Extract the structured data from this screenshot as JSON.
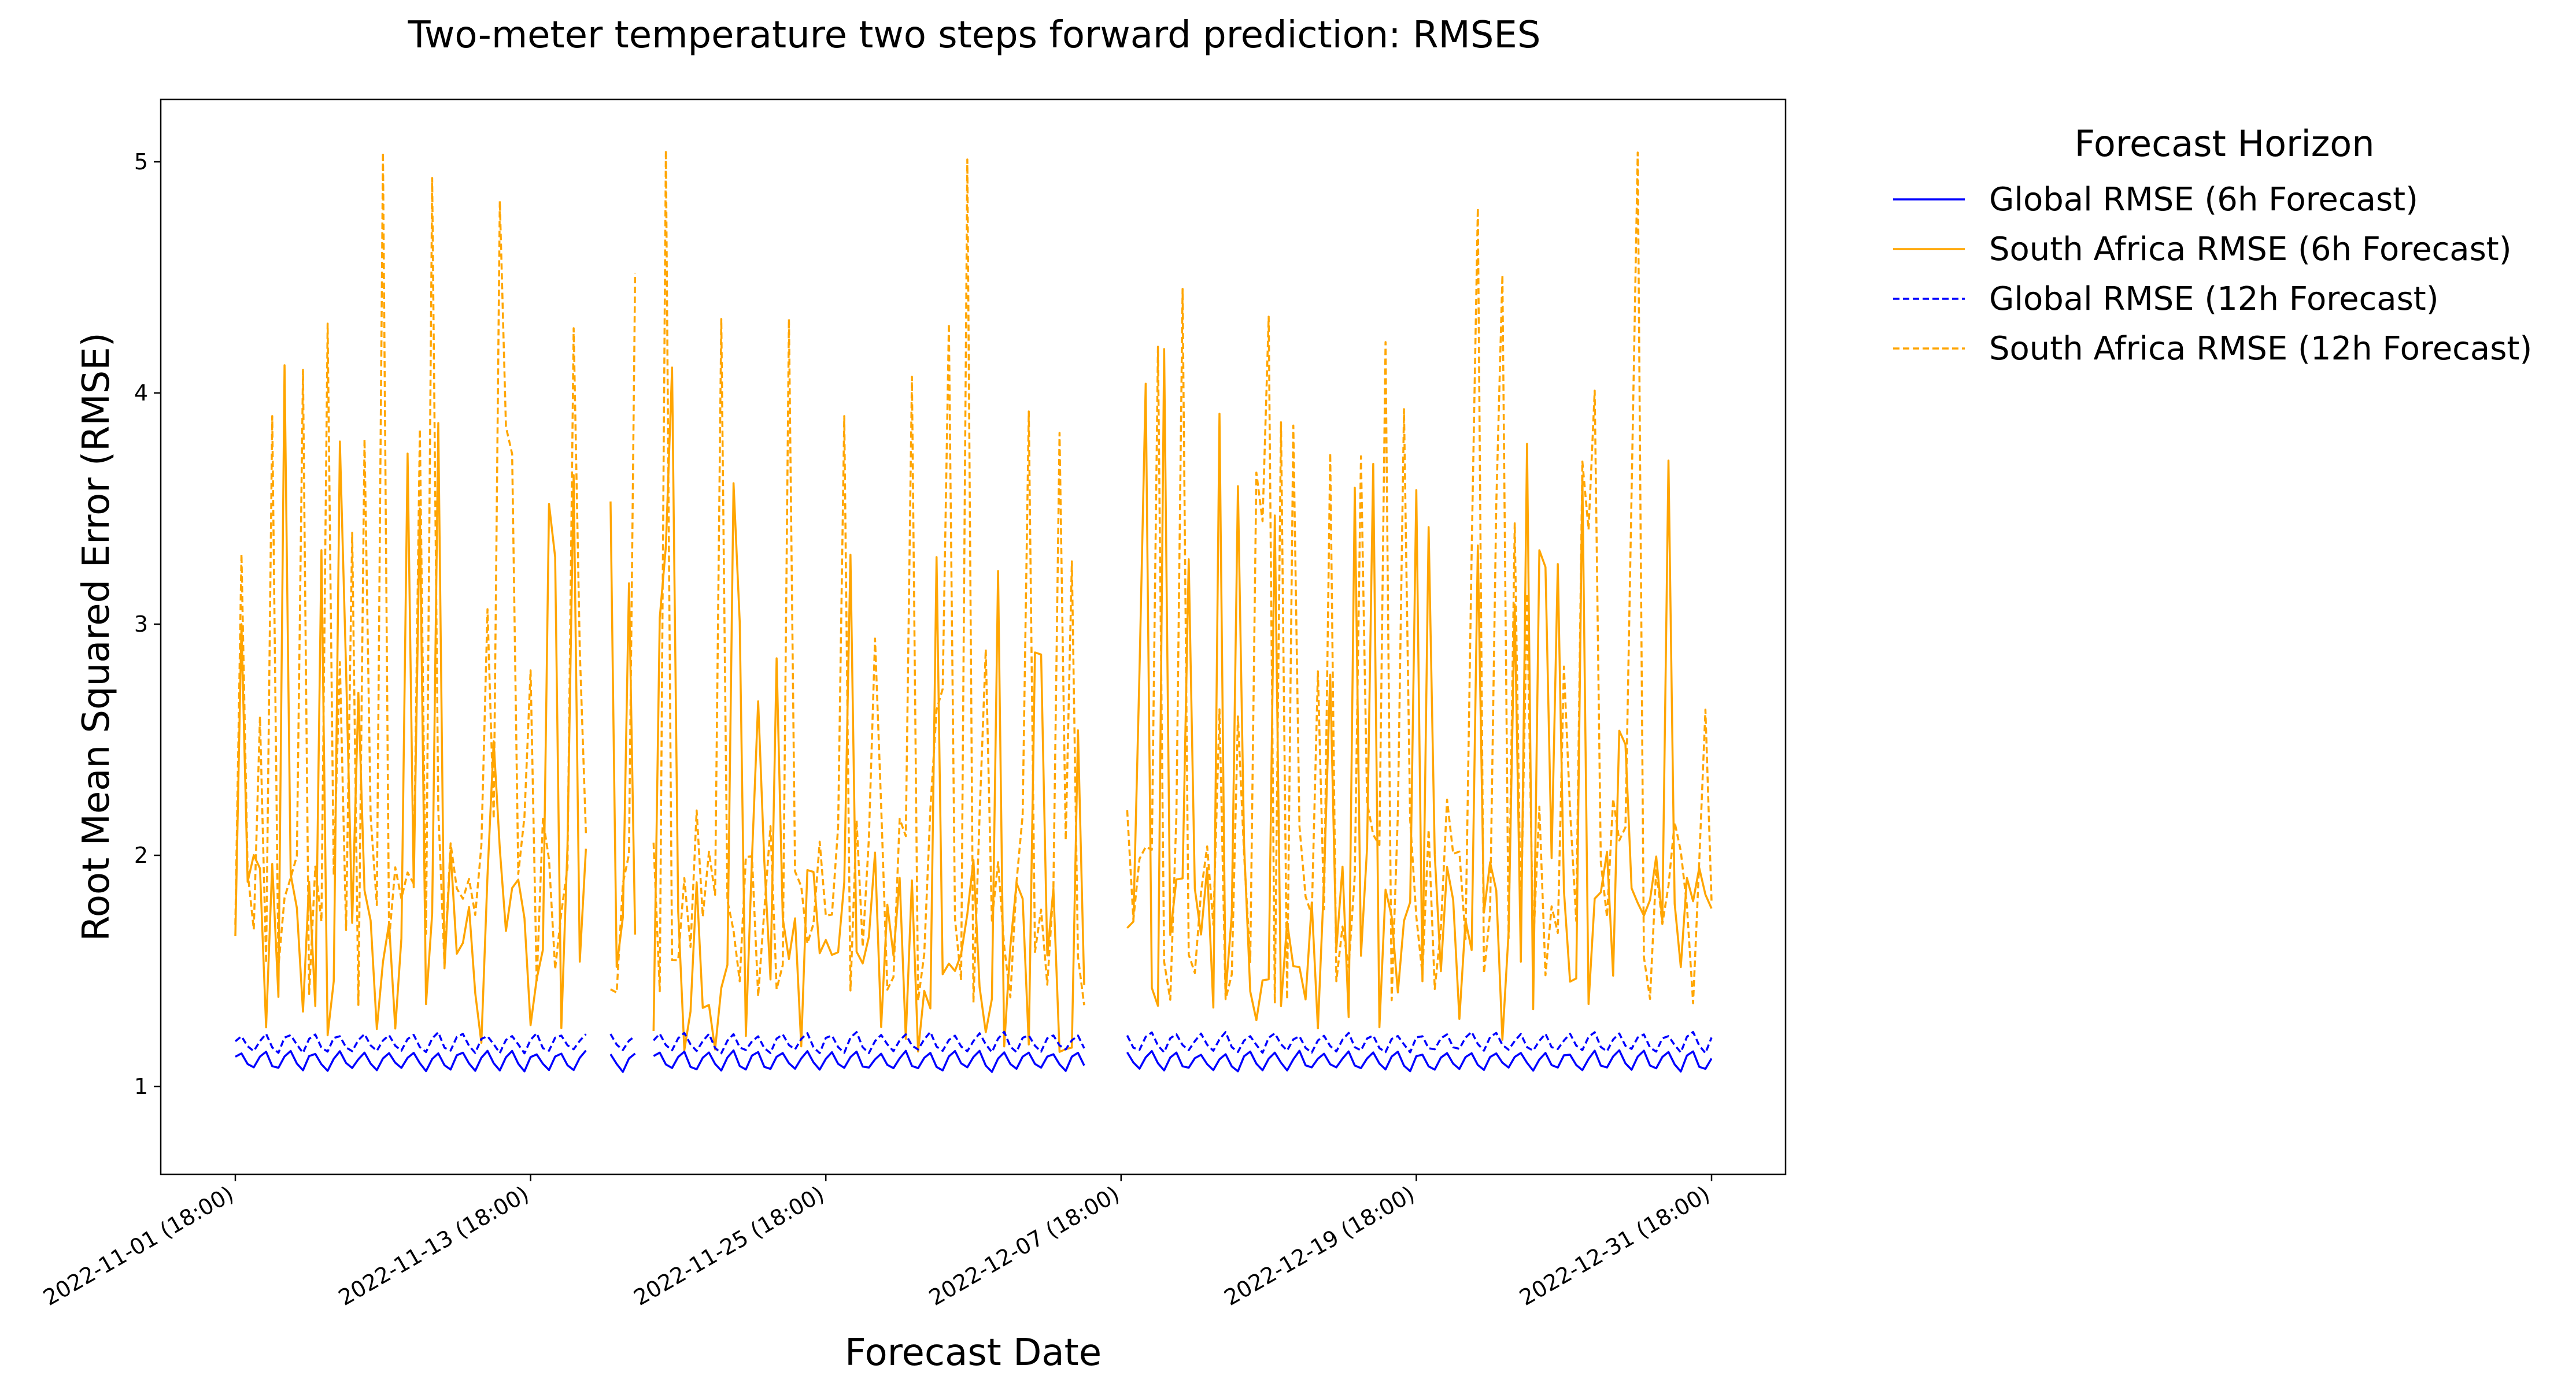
{
  "chart_data": {
    "type": "line",
    "title": "Two-meter temperature two steps forward prediction: RMSES",
    "xlabel": "Forecast Date",
    "ylabel": "Root Mean Squared Error (RMSE)",
    "x_range": [
      "2022-11-01 18:00",
      "2022-12-31 18:00"
    ],
    "x_tick_labels": [
      "2022-11-01 (18:00)",
      "2022-11-13 (18:00)",
      "2022-11-25 (18:00)",
      "2022-12-07 (18:00)",
      "2022-12-19 (18:00)",
      "2022-12-31 (18:00)"
    ],
    "y_ticks": [
      1,
      2,
      3,
      4,
      5
    ],
    "ylim": [
      0.62,
      5.27
    ],
    "grid": false,
    "legend": {
      "title": "Forecast Horizon",
      "placement": "outside top-right"
    },
    "series": [
      {
        "name": "Global RMSE (6h Forecast)",
        "color": "#0000ff",
        "dash": "solid",
        "baseline": 1.11,
        "amplitude": 0.04,
        "note_values_range": [
          1.06,
          1.19
        ]
      },
      {
        "name": "South Africa RMSE (6h Forecast)",
        "color": "#ffa500",
        "dash": "solid",
        "note_values_range": [
          0.84,
          4.11
        ]
      },
      {
        "name": "Global RMSE (12h Forecast)",
        "color": "#0000ff",
        "dash": "dashed",
        "baseline": 1.19,
        "amplitude": 0.04,
        "note_values_range": [
          1.14,
          1.29
        ]
      },
      {
        "name": "South Africa RMSE (12h Forecast)",
        "color": "#ffa500",
        "dash": "dashed",
        "note_values_range": [
          1.05,
          5.06
        ]
      }
    ],
    "peaks_12h": [
      [
        "2022-11-01 18:00",
        1.7
      ],
      [
        "2022-11-03 06:00",
        3.9
      ],
      [
        "2022-11-04 12:00",
        4.1
      ],
      [
        "2022-11-05 12:00",
        4.3
      ],
      [
        "2022-11-07 00:00",
        3.8
      ],
      [
        "2022-11-07 18:00",
        5.04
      ],
      [
        "2022-11-09 18:00",
        4.93
      ],
      [
        "2022-11-12 12:00",
        4.83
      ],
      [
        "2022-11-13 18:00",
        2.8
      ],
      [
        "2022-11-15 12:00",
        4.28
      ],
      [
        "2022-11-18 00:00",
        4.52
      ],
      [
        "2022-11-19 06:00",
        5.05
      ],
      [
        "2022-11-21 12:00",
        4.32
      ],
      [
        "2022-11-24 06:00",
        4.32
      ],
      [
        "2022-11-26 12:00",
        3.9
      ],
      [
        "2022-11-29 06:00",
        4.07
      ],
      [
        "2022-11-30 18:00",
        4.3
      ],
      [
        "2022-12-01 12:00",
        5.01
      ],
      [
        "2022-12-04 00:00",
        3.92
      ],
      [
        "2022-12-07 18:00",
        2.2
      ],
      [
        "2022-12-09 06:00",
        4.2
      ],
      [
        "2022-12-10 06:00",
        4.45
      ],
      [
        "2022-12-13 18:00",
        4.33
      ],
      [
        "2022-12-16 06:00",
        3.74
      ],
      [
        "2022-12-18 12:00",
        4.22
      ],
      [
        "2022-12-19 06:00",
        3.93
      ],
      [
        "2022-12-22 06:00",
        4.8
      ],
      [
        "2022-12-23 06:00",
        4.51
      ],
      [
        "2022-12-27 00:00",
        4.01
      ],
      [
        "2022-12-28 18:00",
        5.04
      ],
      [
        "2022-12-31 12:00",
        2.63
      ],
      [
        "2022-12-31 18:00",
        1.8
      ]
    ],
    "peaks_6h": [
      [
        "2022-11-01 18:00",
        1.65
      ],
      [
        "2022-11-02 00:00",
        3.0
      ],
      [
        "2022-11-03 18:00",
        4.12
      ],
      [
        "2022-11-05 06:00",
        3.32
      ],
      [
        "2022-11-06 00:00",
        3.79
      ],
      [
        "2022-11-09 06:00",
        3.5
      ],
      [
        "2022-11-10 00:00",
        3.87
      ],
      [
        "2022-11-14 12:00",
        3.52
      ],
      [
        "2022-11-16 18:00",
        3.63
      ],
      [
        "2022-11-19 12:00",
        4.11
      ],
      [
        "2022-11-22 06:00",
        3.01
      ],
      [
        "2022-11-26 18:00",
        3.3
      ],
      [
        "2022-11-30 06:00",
        3.29
      ],
      [
        "2022-12-02 18:00",
        3.23
      ],
      [
        "2022-12-08 18:00",
        4.04
      ],
      [
        "2022-12-09 12:00",
        4.19
      ],
      [
        "2022-12-11 18:00",
        3.91
      ],
      [
        "2022-12-14 00:00",
        3.47
      ],
      [
        "2022-12-17 06:00",
        3.59
      ],
      [
        "2022-12-19 18:00",
        3.58
      ],
      [
        "2022-12-20 06:00",
        3.42
      ],
      [
        "2022-12-22 06:00",
        3.34
      ],
      [
        "2022-12-24 06:00",
        3.78
      ],
      [
        "2022-12-25 12:00",
        3.26
      ],
      [
        "2022-12-28 06:00",
        2.48
      ],
      [
        "2022-12-31 18:00",
        1.77
      ]
    ],
    "gaps": [
      [
        "2022-11-16 06:00",
        "2022-11-16 18:00"
      ],
      [
        "2022-11-18 06:00",
        "2022-11-18 12:00"
      ],
      [
        "2022-12-06 12:00",
        "2022-12-07 18:00"
      ]
    ]
  }
}
